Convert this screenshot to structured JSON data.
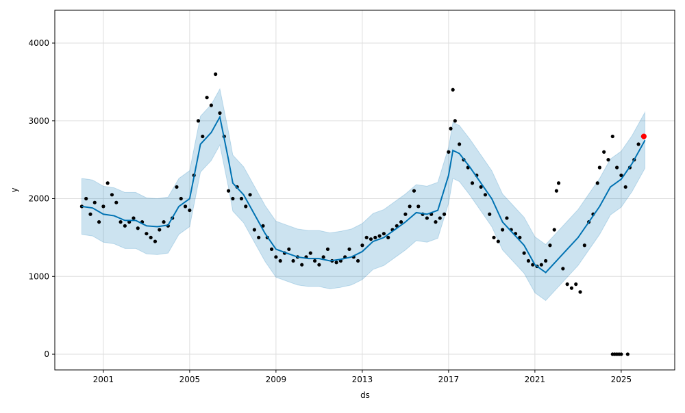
{
  "chart_data": {
    "type": "scatter",
    "title": "",
    "xlabel": "ds",
    "ylabel": "y",
    "xlim": [
      1998.75,
      2027.48
    ],
    "ylim": [
      -202,
      4422
    ],
    "grid": true,
    "x_ticks": [
      2001,
      2005,
      2009,
      2013,
      2017,
      2021,
      2025
    ],
    "x_tick_labels": [
      "2001",
      "2005",
      "2009",
      "2013",
      "2017",
      "2021",
      "2025"
    ],
    "y_ticks": [
      0,
      1000,
      2000,
      3000,
      4000
    ],
    "y_tick_labels": [
      "0",
      "1000",
      "2000",
      "3000",
      "4000"
    ],
    "colors": {
      "forecast": "#0072B2",
      "interval": "#0072B2",
      "actual": "#000000",
      "highlight": "#ff0000"
    },
    "forecast": [
      [
        2000.0,
        1900
      ],
      [
        2000.5,
        1880
      ],
      [
        2001,
        1800
      ],
      [
        2001.5,
        1780
      ],
      [
        2002,
        1720
      ],
      [
        2002.5,
        1720
      ],
      [
        2003,
        1650
      ],
      [
        2003.5,
        1640
      ],
      [
        2004,
        1660
      ],
      [
        2004.5,
        1900
      ],
      [
        2005,
        2000
      ],
      [
        2005.5,
        2700
      ],
      [
        2006,
        2850
      ],
      [
        2006.4,
        3050
      ],
      [
        2006.8,
        2500
      ],
      [
        2007,
        2200
      ],
      [
        2007.5,
        2050
      ],
      [
        2008,
        1800
      ],
      [
        2008.5,
        1550
      ],
      [
        2009,
        1350
      ],
      [
        2009.5,
        1300
      ],
      [
        2010,
        1250
      ],
      [
        2010.5,
        1230
      ],
      [
        2011,
        1230
      ],
      [
        2011.5,
        1200
      ],
      [
        2012,
        1220
      ],
      [
        2012.5,
        1250
      ],
      [
        2013,
        1320
      ],
      [
        2013.5,
        1450
      ],
      [
        2014,
        1500
      ],
      [
        2014.5,
        1600
      ],
      [
        2015,
        1700
      ],
      [
        2015.5,
        1820
      ],
      [
        2016,
        1800
      ],
      [
        2016.5,
        1850
      ],
      [
        2017,
        2300
      ],
      [
        2017.2,
        2620
      ],
      [
        2017.5,
        2580
      ],
      [
        2018,
        2400
      ],
      [
        2018.5,
        2200
      ],
      [
        2019,
        2000
      ],
      [
        2019.5,
        1700
      ],
      [
        2020,
        1550
      ],
      [
        2020.5,
        1400
      ],
      [
        2021,
        1150
      ],
      [
        2021.5,
        1050
      ],
      [
        2022,
        1200
      ],
      [
        2022.5,
        1350
      ],
      [
        2023,
        1500
      ],
      [
        2023.5,
        1700
      ],
      [
        2024,
        1900
      ],
      [
        2024.5,
        2150
      ],
      [
        2025,
        2250
      ],
      [
        2025.5,
        2450
      ],
      [
        2026.1,
        2750
      ]
    ],
    "interval_halfwidth": 360,
    "actual": [
      [
        2000.0,
        1900
      ],
      [
        2000.2,
        2000
      ],
      [
        2000.4,
        1800
      ],
      [
        2000.6,
        1950
      ],
      [
        2000.8,
        1700
      ],
      [
        2001.0,
        1900
      ],
      [
        2001.2,
        2200
      ],
      [
        2001.4,
        2050
      ],
      [
        2001.6,
        1950
      ],
      [
        2001.8,
        1700
      ],
      [
        2002.0,
        1650
      ],
      [
        2002.2,
        1700
      ],
      [
        2002.4,
        1750
      ],
      [
        2002.6,
        1620
      ],
      [
        2002.8,
        1700
      ],
      [
        2003.0,
        1550
      ],
      [
        2003.2,
        1500
      ],
      [
        2003.4,
        1450
      ],
      [
        2003.6,
        1600
      ],
      [
        2003.8,
        1700
      ],
      [
        2004.0,
        1650
      ],
      [
        2004.2,
        1750
      ],
      [
        2004.4,
        2150
      ],
      [
        2004.6,
        2000
      ],
      [
        2004.8,
        1900
      ],
      [
        2005.0,
        1850
      ],
      [
        2005.2,
        2300
      ],
      [
        2005.4,
        3000
      ],
      [
        2005.6,
        2800
      ],
      [
        2005.8,
        3300
      ],
      [
        2006.0,
        3200
      ],
      [
        2006.2,
        3600
      ],
      [
        2006.4,
        3100
      ],
      [
        2006.6,
        2800
      ],
      [
        2006.8,
        2100
      ],
      [
        2007.0,
        2000
      ],
      [
        2007.2,
        2150
      ],
      [
        2007.4,
        2000
      ],
      [
        2007.6,
        1900
      ],
      [
        2007.8,
        2050
      ],
      [
        2008.0,
        1600
      ],
      [
        2008.2,
        1500
      ],
      [
        2008.4,
        1650
      ],
      [
        2008.6,
        1500
      ],
      [
        2008.8,
        1350
      ],
      [
        2009.0,
        1250
      ],
      [
        2009.2,
        1200
      ],
      [
        2009.4,
        1300
      ],
      [
        2009.6,
        1350
      ],
      [
        2009.8,
        1200
      ],
      [
        2010.0,
        1250
      ],
      [
        2010.2,
        1150
      ],
      [
        2010.4,
        1250
      ],
      [
        2010.6,
        1300
      ],
      [
        2010.8,
        1200
      ],
      [
        2011.0,
        1150
      ],
      [
        2011.2,
        1250
      ],
      [
        2011.4,
        1350
      ],
      [
        2011.6,
        1200
      ],
      [
        2011.8,
        1180
      ],
      [
        2012.0,
        1200
      ],
      [
        2012.2,
        1250
      ],
      [
        2012.4,
        1350
      ],
      [
        2012.6,
        1250
      ],
      [
        2012.8,
        1200
      ],
      [
        2013.0,
        1400
      ],
      [
        2013.2,
        1500
      ],
      [
        2013.4,
        1480
      ],
      [
        2013.6,
        1500
      ],
      [
        2013.8,
        1520
      ],
      [
        2014.0,
        1550
      ],
      [
        2014.2,
        1500
      ],
      [
        2014.4,
        1600
      ],
      [
        2014.6,
        1650
      ],
      [
        2014.8,
        1700
      ],
      [
        2015.0,
        1800
      ],
      [
        2015.2,
        1900
      ],
      [
        2015.4,
        2100
      ],
      [
        2015.6,
        1900
      ],
      [
        2015.8,
        1800
      ],
      [
        2016.0,
        1750
      ],
      [
        2016.2,
        1800
      ],
      [
        2016.4,
        1700
      ],
      [
        2016.6,
        1750
      ],
      [
        2016.8,
        1800
      ],
      [
        2017.0,
        2600
      ],
      [
        2017.1,
        2900
      ],
      [
        2017.2,
        3400
      ],
      [
        2017.3,
        3000
      ],
      [
        2017.5,
        2700
      ],
      [
        2017.7,
        2500
      ],
      [
        2017.9,
        2400
      ],
      [
        2018.1,
        2200
      ],
      [
        2018.3,
        2300
      ],
      [
        2018.5,
        2150
      ],
      [
        2018.7,
        2050
      ],
      [
        2018.9,
        1800
      ],
      [
        2019.1,
        1500
      ],
      [
        2019.3,
        1450
      ],
      [
        2019.5,
        1600
      ],
      [
        2019.7,
        1750
      ],
      [
        2019.9,
        1600
      ],
      [
        2020.1,
        1550
      ],
      [
        2020.3,
        1500
      ],
      [
        2020.5,
        1300
      ],
      [
        2020.7,
        1200
      ],
      [
        2020.9,
        1150
      ],
      [
        2021.1,
        1130
      ],
      [
        2021.3,
        1150
      ],
      [
        2021.5,
        1200
      ],
      [
        2021.7,
        1400
      ],
      [
        2021.9,
        1600
      ],
      [
        2022.0,
        2100
      ],
      [
        2022.1,
        2200
      ],
      [
        2022.3,
        1100
      ],
      [
        2022.5,
        900
      ],
      [
        2022.7,
        850
      ],
      [
        2022.9,
        900
      ],
      [
        2023.1,
        800
      ],
      [
        2023.3,
        1400
      ],
      [
        2023.5,
        1700
      ],
      [
        2023.7,
        1800
      ],
      [
        2023.9,
        2200
      ],
      [
        2024.0,
        2400
      ],
      [
        2024.2,
        2600
      ],
      [
        2024.4,
        2500
      ],
      [
        2024.6,
        2800
      ],
      [
        2024.8,
        2400
      ],
      [
        2025.0,
        2300
      ],
      [
        2025.2,
        2150
      ],
      [
        2025.4,
        2400
      ],
      [
        2025.6,
        2500
      ],
      [
        2025.8,
        2700
      ],
      [
        2026.0,
        2800
      ],
      [
        2024.6,
        0
      ],
      [
        2024.7,
        0
      ],
      [
        2024.8,
        0
      ],
      [
        2024.9,
        0
      ],
      [
        2025.0,
        0
      ],
      [
        2025.3,
        0
      ]
    ],
    "highlight": [
      [
        2026.05,
        2800
      ]
    ]
  }
}
